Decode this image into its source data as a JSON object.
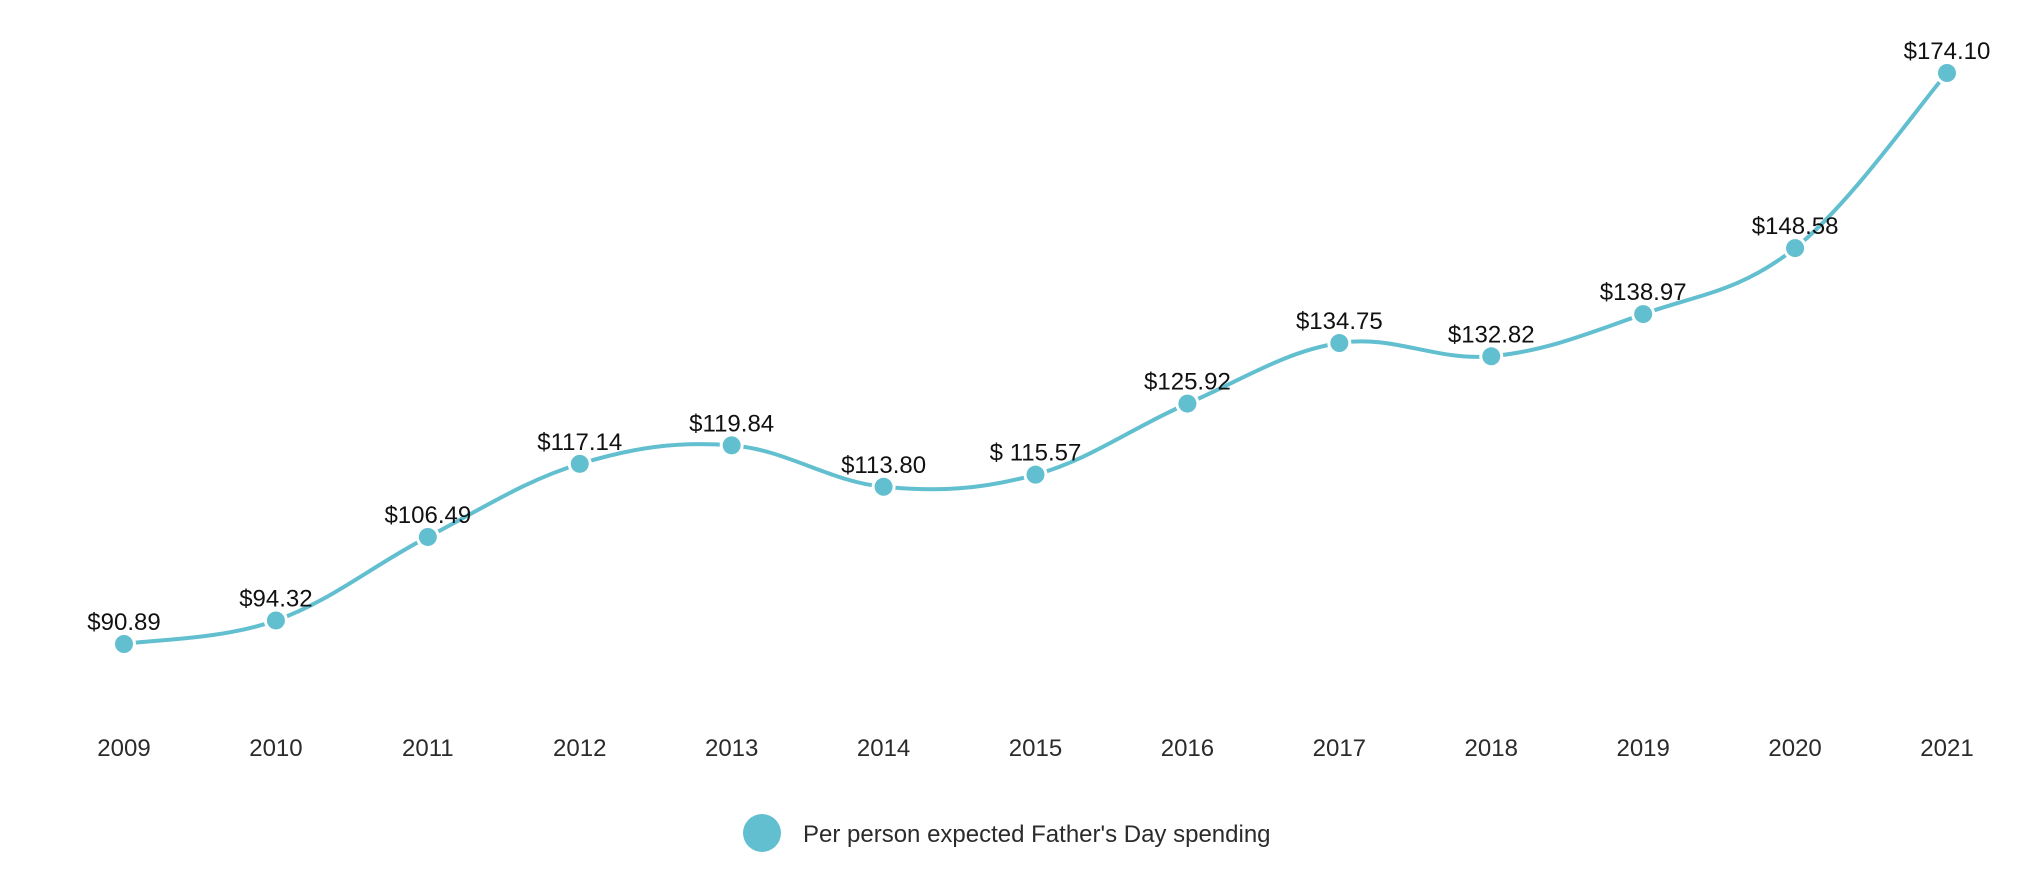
{
  "chart_data": {
    "type": "line",
    "title": "",
    "xlabel": "",
    "ylabel": "",
    "x": [
      "2009",
      "2010",
      "2011",
      "2012",
      "2013",
      "2014",
      "2015",
      "2016",
      "2017",
      "2018",
      "2019",
      "2020",
      "2021"
    ],
    "series": [
      {
        "name": "Per person expected Father's Day spending",
        "color": "#62bfcf",
        "values": [
          90.89,
          94.32,
          106.49,
          117.14,
          119.84,
          113.8,
          115.57,
          125.92,
          134.75,
          132.82,
          138.97,
          148.58,
          174.1
        ],
        "data_labels": [
          "$90.89",
          "$94.32",
          "$106.49",
          "$117.14",
          "$119.84",
          "$113.80",
          "$ 115.57",
          "$125.92",
          "$134.75",
          "$132.82",
          "$138.97",
          "$148.58",
          "$174.10"
        ]
      }
    ],
    "ylim": [
      90.89,
      174.1
    ],
    "grid": false,
    "y_axis_visible": false,
    "smooth": true,
    "legend": {
      "position": "bottom-center",
      "marker": "circle"
    }
  }
}
